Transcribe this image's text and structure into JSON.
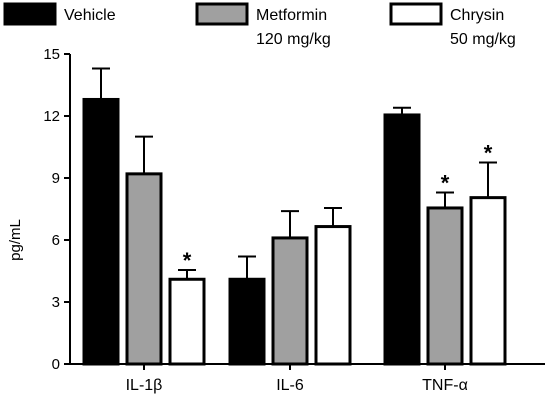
{
  "chart_data": {
    "type": "bar",
    "title": "",
    "xlabel": "",
    "ylabel": "pg/mL",
    "ylim": [
      0,
      15
    ],
    "yticks": [
      0,
      3,
      6,
      9,
      12,
      15
    ],
    "categories": [
      "IL-1β",
      "IL-6",
      "TNF-α"
    ],
    "series": [
      {
        "name": "Vehicle",
        "color": "#000000",
        "values": [
          12.8,
          4.1,
          12.05
        ],
        "errors": [
          1.5,
          1.1,
          0.35
        ],
        "significant": [
          false,
          false,
          false
        ]
      },
      {
        "name": "Metformin 120 mg/kg",
        "legend_lines": [
          "Metformin",
          "120 mg/kg"
        ],
        "color": "#a0a0a0",
        "values": [
          9.2,
          6.1,
          7.55
        ],
        "errors": [
          1.8,
          1.3,
          0.75
        ],
        "significant": [
          false,
          false,
          true
        ]
      },
      {
        "name": "Chrysin 50 mg/kg",
        "legend_lines": [
          "Chrysin",
          "50 mg/kg"
        ],
        "color": "#ffffff",
        "values": [
          4.1,
          6.65,
          8.05
        ],
        "errors": [
          0.45,
          0.9,
          1.7
        ],
        "significant": [
          true,
          false,
          true
        ]
      }
    ],
    "significance_marker": "*",
    "legend_position": "top",
    "grid": false
  }
}
